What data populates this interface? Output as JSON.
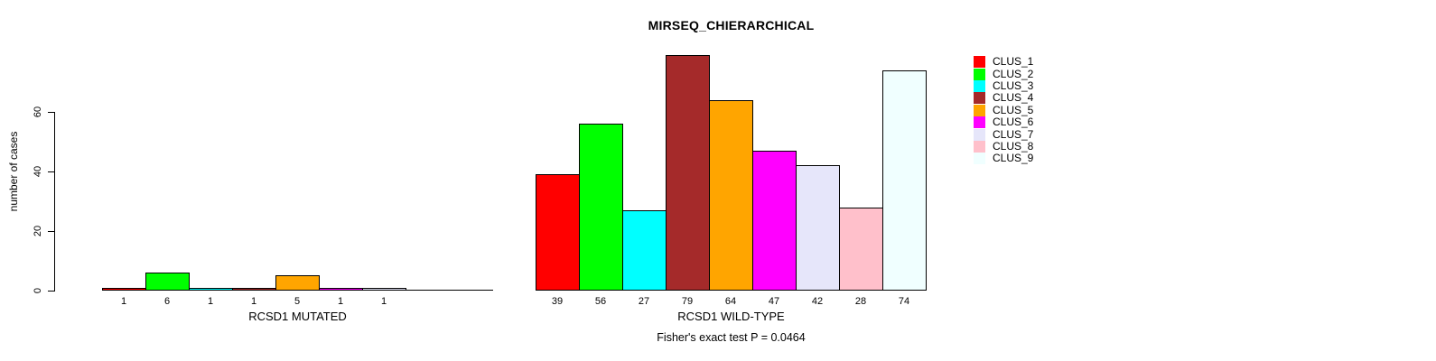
{
  "title": "MIRSEQ_CHIERARCHICAL",
  "caption": "Fisher's exact test P = 0.0464",
  "y_axis": {
    "label": "number of cases",
    "ticks": [
      "0",
      "20",
      "40",
      "60"
    ]
  },
  "legend": {
    "items": [
      {
        "label": "CLUS_1",
        "color": "#FF0000"
      },
      {
        "label": "CLUS_2",
        "color": "#00FF00"
      },
      {
        "label": "CLUS_3",
        "color": "#00FFFF"
      },
      {
        "label": "CLUS_4",
        "color": "#A52A2A"
      },
      {
        "label": "CLUS_5",
        "color": "#FFA500"
      },
      {
        "label": "CLUS_6",
        "color": "#FF00FF"
      },
      {
        "label": "CLUS_7",
        "color": "#E6E6FA"
      },
      {
        "label": "CLUS_8",
        "color": "#FFC0CB"
      },
      {
        "label": "CLUS_9",
        "color": "#F0FFFF"
      }
    ]
  },
  "chart_data": {
    "type": "bar",
    "title": "MIRSEQ_CHIERARCHICAL",
    "ylabel": "number of cases",
    "ylim": [
      0,
      80
    ],
    "yticks": [
      0,
      20,
      40,
      60
    ],
    "grid": false,
    "legend_position": "right",
    "clusters": [
      "CLUS_1",
      "CLUS_2",
      "CLUS_3",
      "CLUS_4",
      "CLUS_5",
      "CLUS_6",
      "CLUS_7",
      "CLUS_8",
      "CLUS_9"
    ],
    "colors": [
      "#FF0000",
      "#00FF00",
      "#00FFFF",
      "#A52A2A",
      "#FFA500",
      "#FF00FF",
      "#E6E6FA",
      "#FFC0CB",
      "#F0FFFF"
    ],
    "groups": [
      {
        "name": "RCSD1 MUTATED",
        "values": [
          1,
          6,
          1,
          1,
          5,
          1,
          1,
          0,
          0
        ]
      },
      {
        "name": "RCSD1 WILD-TYPE",
        "values": [
          39,
          56,
          27,
          79,
          64,
          47,
          42,
          28,
          74
        ]
      }
    ],
    "annotation": "Fisher's exact test P = 0.0464"
  }
}
